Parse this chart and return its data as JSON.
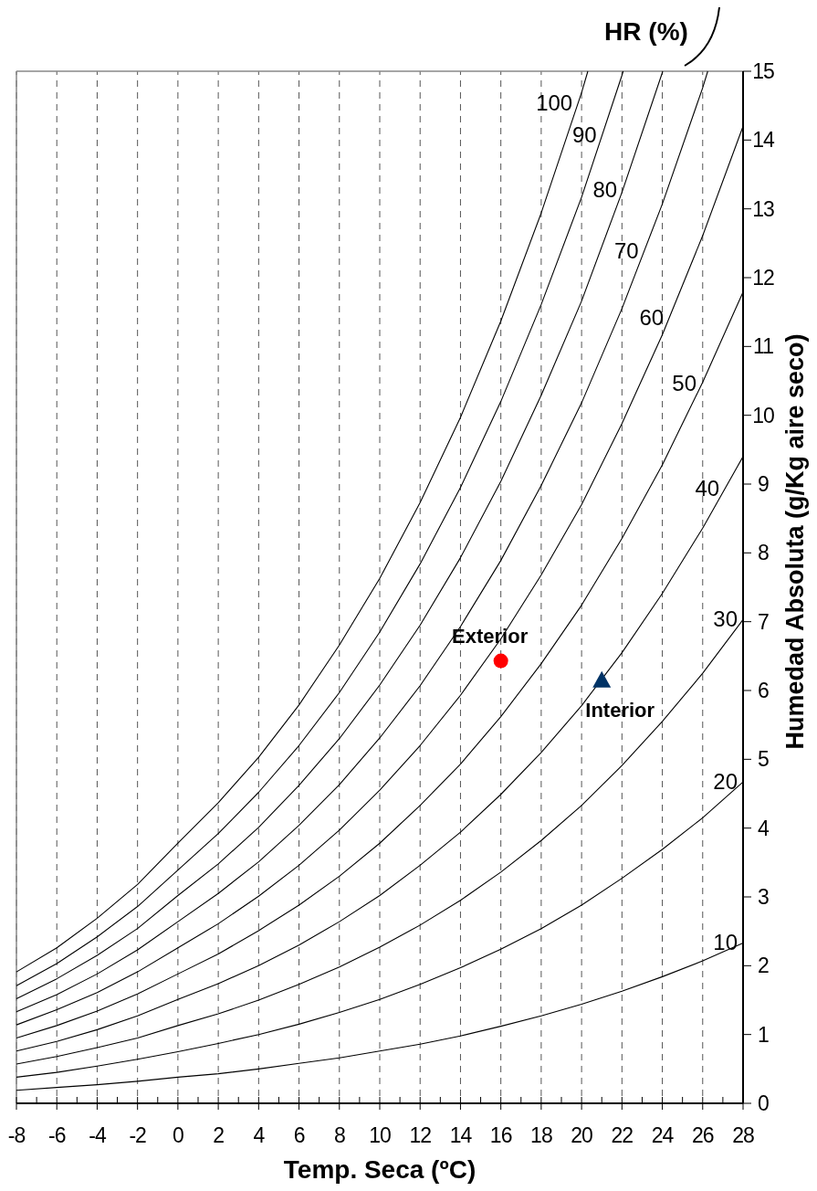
{
  "chart_data": {
    "type": "line",
    "legend_title": "HR (%)",
    "xlabel": "Temp. Seca (ºC)",
    "ylabel": "Humedad Absoluta (g/Kg aire seco)",
    "xlim": [
      -8,
      28
    ],
    "ylim": [
      0,
      15
    ],
    "xticks": [
      -8,
      {
        "value": -7,
        "label": null
      },
      -6,
      {
        "value": -5,
        "label": null
      },
      -4,
      {
        "value": -3,
        "label": null
      },
      -2,
      {
        "value": -1,
        "label": null
      },
      0,
      {
        "value": 1,
        "label": null
      },
      2,
      {
        "value": 3,
        "label": null
      },
      4,
      {
        "value": 5,
        "label": null
      },
      6,
      {
        "value": 7,
        "label": null
      },
      8,
      {
        "value": 9,
        "label": null
      },
      10,
      {
        "value": 11,
        "label": null
      },
      12,
      {
        "value": 13,
        "label": null
      },
      14,
      {
        "value": 15,
        "label": null
      },
      16,
      {
        "value": 17,
        "label": null
      },
      18,
      {
        "value": 19,
        "label": null
      },
      20,
      {
        "value": 21,
        "label": null
      },
      22,
      {
        "value": 23,
        "label": null
      },
      24,
      {
        "value": 25,
        "label": null
      },
      26,
      {
        "value": 27,
        "label": null
      },
      28
    ],
    "yticks": [
      0,
      1,
      2,
      3,
      4,
      5,
      6,
      7,
      8,
      9,
      10,
      11,
      12,
      13,
      14,
      15
    ],
    "grid": "x",
    "line_style": "solid",
    "x": [
      -8,
      -6,
      -4,
      -2,
      0,
      2,
      4,
      6,
      8,
      10,
      12,
      14,
      16,
      18,
      20,
      22,
      24,
      26,
      28
    ],
    "series": [
      {
        "name": "100",
        "color": "#000000",
        "x": [
          -8,
          -6,
          -4,
          -2,
          0,
          2,
          4,
          6,
          8,
          10,
          12,
          14,
          16,
          18,
          20,
          20.31
        ],
        "values": [
          1.91,
          2.26,
          2.69,
          3.18,
          3.78,
          4.37,
          5.03,
          5.79,
          6.66,
          7.63,
          8.73,
          9.97,
          11.37,
          12.94,
          14.69,
          15
        ]
      },
      {
        "name": "90",
        "color": "#000000",
        "x": [
          -8,
          -6,
          -4,
          -2,
          0,
          2,
          4,
          6,
          8,
          10,
          12,
          14,
          16,
          18,
          20,
          22,
          22.06
        ],
        "values": [
          1.71,
          2.03,
          2.42,
          2.86,
          3.39,
          3.92,
          4.52,
          5.2,
          5.97,
          6.85,
          7.84,
          8.95,
          10.2,
          11.61,
          13.17,
          14.94,
          15
        ]
      },
      {
        "name": "80",
        "color": "#000000",
        "x": [
          -8,
          -6,
          -4,
          -2,
          0,
          2,
          4,
          6,
          8,
          10,
          12,
          14,
          16,
          18,
          20,
          22,
          24,
          24.02
        ],
        "values": [
          1.52,
          1.81,
          2.15,
          2.54,
          3.02,
          3.48,
          4.01,
          4.62,
          5.3,
          6.08,
          6.95,
          7.93,
          9.04,
          10.29,
          11.66,
          13.24,
          14.98,
          15
        ]
      },
      {
        "name": "70",
        "color": "#000000",
        "x": [
          -8,
          -6,
          -4,
          -2,
          0,
          2,
          4,
          6,
          8,
          10,
          12,
          14,
          16,
          18,
          20,
          22,
          24,
          26,
          26.25
        ],
        "values": [
          1.33,
          1.58,
          1.88,
          2.23,
          2.64,
          3.05,
          3.51,
          4.04,
          4.63,
          5.31,
          6.07,
          6.93,
          7.89,
          8.98,
          10.18,
          11.55,
          13.07,
          14.76,
          15
        ]
      },
      {
        "name": "60",
        "color": "#000000",
        "values": [
          1.14,
          1.36,
          1.61,
          1.91,
          2.26,
          2.61,
          3.01,
          3.46,
          3.97,
          4.55,
          5.2,
          5.93,
          6.75,
          7.68,
          8.7,
          9.88,
          11.17,
          12.61,
          14.2
        ]
      },
      {
        "name": "50",
        "color": "#000000",
        "values": [
          0.95,
          1.13,
          1.34,
          1.59,
          1.88,
          2.17,
          2.51,
          2.88,
          3.3,
          3.78,
          4.33,
          4.93,
          5.62,
          6.39,
          7.24,
          8.21,
          9.28,
          10.48,
          11.79
        ]
      },
      {
        "name": "40",
        "color": "#000000",
        "values": [
          0.76,
          0.9,
          1.07,
          1.27,
          1.51,
          1.74,
          2.0,
          2.3,
          2.64,
          3.02,
          3.46,
          3.94,
          4.49,
          5.1,
          5.78,
          6.55,
          7.41,
          8.36,
          9.4
        ]
      },
      {
        "name": "30",
        "color": "#000000",
        "values": [
          0.57,
          0.68,
          0.81,
          0.95,
          1.13,
          1.3,
          1.5,
          1.73,
          1.98,
          2.27,
          2.59,
          2.95,
          3.36,
          3.82,
          4.33,
          4.91,
          5.55,
          6.25,
          7.03
        ]
      },
      {
        "name": "20",
        "color": "#000000",
        "values": [
          0.38,
          0.45,
          0.54,
          0.64,
          0.75,
          0.87,
          1.0,
          1.15,
          1.32,
          1.51,
          1.73,
          1.97,
          2.24,
          2.54,
          2.88,
          3.27,
          3.69,
          4.15,
          4.67
        ]
      },
      {
        "name": "10",
        "color": "#000000",
        "values": [
          0.19,
          0.23,
          0.27,
          0.32,
          0.38,
          0.43,
          0.5,
          0.58,
          0.66,
          0.76,
          0.86,
          0.98,
          1.12,
          1.27,
          1.44,
          1.63,
          1.84,
          2.07,
          2.33
        ]
      },
      {
        "name": "Exterior",
        "type": "scatter",
        "marker": "circle",
        "color": "#ff0000",
        "x": [
          16
        ],
        "values": [
          6.43
        ]
      },
      {
        "name": "Interior",
        "type": "scatter",
        "marker": "triangle",
        "color": "#003366",
        "x": [
          21
        ],
        "values": [
          6.15
        ]
      }
    ]
  }
}
